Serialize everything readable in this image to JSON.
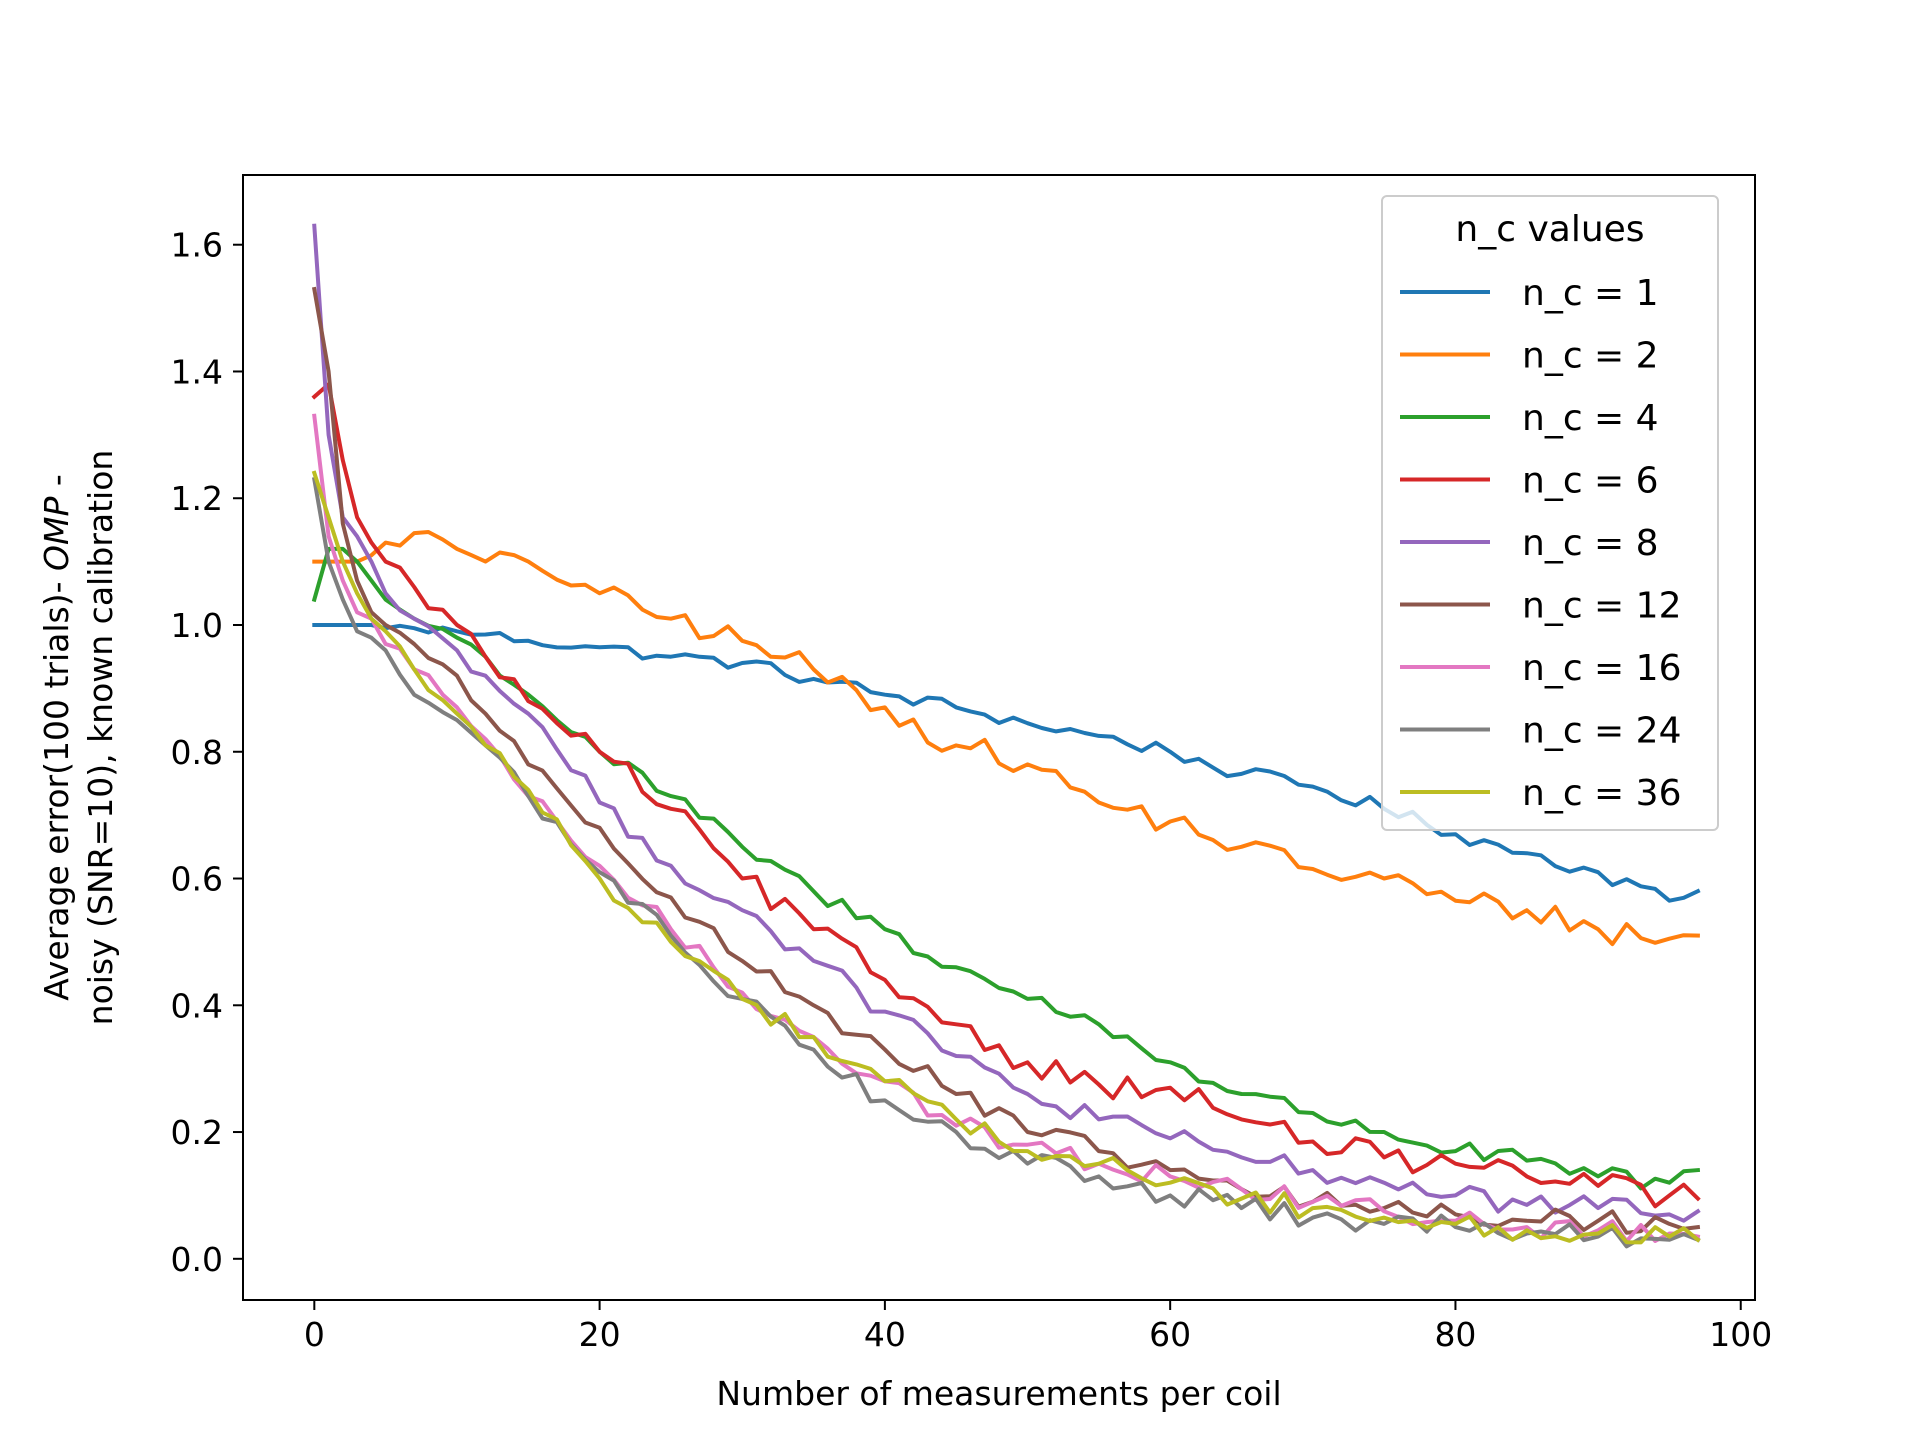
{
  "chart_data": {
    "type": "line",
    "xlabel": "Number of measurements per coil",
    "ylabel_line1_prefix": "Average error(100 trials)- ",
    "ylabel_line1_italic": "OMP",
    "ylabel_line1_suffix": " -",
    "ylabel_line2": "noisy (SNR=10), known calibration",
    "xlim": [
      -5,
      101
    ],
    "ylim": [
      -0.065,
      1.71
    ],
    "xticks": [
      0,
      20,
      40,
      60,
      80,
      100
    ],
    "yticks": [
      0.0,
      0.2,
      0.4,
      0.6,
      0.8,
      1.0,
      1.2,
      1.4,
      1.6
    ],
    "legend_title": "n_c values",
    "legend_position": "top-right",
    "grid": false,
    "anchors_x": [
      0,
      1,
      2,
      3,
      4,
      5,
      7,
      10,
      12,
      15,
      20,
      25,
      30,
      35,
      40,
      45,
      50,
      55,
      60,
      65,
      70,
      75,
      80,
      85,
      90,
      95,
      97
    ],
    "series": [
      {
        "name": "n_c = 1",
        "color": "#1f77b4",
        "anchors": [
          1.0,
          1.0,
          1.0,
          1.0,
          1.0,
          0.995,
          0.995,
          0.99,
          0.985,
          0.975,
          0.965,
          0.95,
          0.94,
          0.915,
          0.89,
          0.87,
          0.845,
          0.825,
          0.8,
          0.765,
          0.745,
          0.71,
          0.67,
          0.64,
          0.61,
          0.565,
          0.58
        ],
        "noise": 0.008
      },
      {
        "name": "n_c = 2",
        "color": "#ff7f0e",
        "anchors": [
          1.1,
          1.1,
          1.1,
          1.1,
          1.11,
          1.13,
          1.145,
          1.12,
          1.1,
          1.1,
          1.05,
          1.01,
          0.975,
          0.93,
          0.87,
          0.81,
          0.78,
          0.72,
          0.69,
          0.65,
          0.615,
          0.6,
          0.565,
          0.55,
          0.52,
          0.505,
          0.51
        ],
        "noise": 0.014
      },
      {
        "name": "n_c = 4",
        "color": "#2ca02c",
        "anchors": [
          1.04,
          1.12,
          1.12,
          1.1,
          1.07,
          1.04,
          1.01,
          0.98,
          0.95,
          0.89,
          0.8,
          0.73,
          0.65,
          0.58,
          0.52,
          0.46,
          0.41,
          0.37,
          0.31,
          0.26,
          0.23,
          0.2,
          0.17,
          0.155,
          0.13,
          0.12,
          0.14
        ],
        "noise": 0.01
      },
      {
        "name": "n_c = 6",
        "color": "#d62728",
        "anchors": [
          1.36,
          1.38,
          1.26,
          1.17,
          1.13,
          1.1,
          1.06,
          1.0,
          0.95,
          0.88,
          0.8,
          0.71,
          0.6,
          0.52,
          0.44,
          0.37,
          0.31,
          0.275,
          0.27,
          0.22,
          0.185,
          0.16,
          0.15,
          0.13,
          0.115,
          0.1,
          0.095
        ],
        "noise": 0.014
      },
      {
        "name": "n_c = 8",
        "color": "#9467bd",
        "anchors": [
          1.63,
          1.3,
          1.17,
          1.14,
          1.1,
          1.05,
          1.01,
          0.96,
          0.92,
          0.86,
          0.72,
          0.62,
          0.55,
          0.47,
          0.39,
          0.32,
          0.26,
          0.22,
          0.19,
          0.16,
          0.14,
          0.12,
          0.1,
          0.085,
          0.08,
          0.07,
          0.075
        ],
        "noise": 0.012
      },
      {
        "name": "n_c = 12",
        "color": "#8c564b",
        "anchors": [
          1.53,
          1.4,
          1.16,
          1.07,
          1.02,
          1.0,
          0.97,
          0.92,
          0.86,
          0.78,
          0.68,
          0.57,
          0.47,
          0.4,
          0.33,
          0.26,
          0.2,
          0.17,
          0.14,
          0.11,
          0.09,
          0.08,
          0.07,
          0.06,
          0.06,
          0.055,
          0.05
        ],
        "noise": 0.012
      },
      {
        "name": "n_c = 16",
        "color": "#e377c2",
        "anchors": [
          1.33,
          1.14,
          1.07,
          1.02,
          1.01,
          0.97,
          0.93,
          0.87,
          0.82,
          0.73,
          0.62,
          0.52,
          0.42,
          0.35,
          0.28,
          0.21,
          0.18,
          0.15,
          0.13,
          0.11,
          0.09,
          0.075,
          0.06,
          0.05,
          0.045,
          0.04,
          0.035
        ],
        "noise": 0.012
      },
      {
        "name": "n_c = 24",
        "color": "#7f7f7f",
        "anchors": [
          1.23,
          1.1,
          1.04,
          0.99,
          0.98,
          0.96,
          0.89,
          0.85,
          0.81,
          0.73,
          0.61,
          0.51,
          0.41,
          0.33,
          0.25,
          0.2,
          0.15,
          0.13,
          0.1,
          0.08,
          0.065,
          0.055,
          0.05,
          0.04,
          0.035,
          0.03,
          0.03
        ],
        "noise": 0.012
      },
      {
        "name": "n_c = 36",
        "color": "#bcbd22",
        "anchors": [
          1.24,
          1.17,
          1.1,
          1.05,
          1.01,
          0.99,
          0.93,
          0.86,
          0.81,
          0.74,
          0.6,
          0.5,
          0.41,
          0.35,
          0.28,
          0.22,
          0.17,
          0.15,
          0.12,
          0.095,
          0.08,
          0.065,
          0.055,
          0.045,
          0.04,
          0.035,
          0.03
        ],
        "noise": 0.012
      }
    ]
  }
}
